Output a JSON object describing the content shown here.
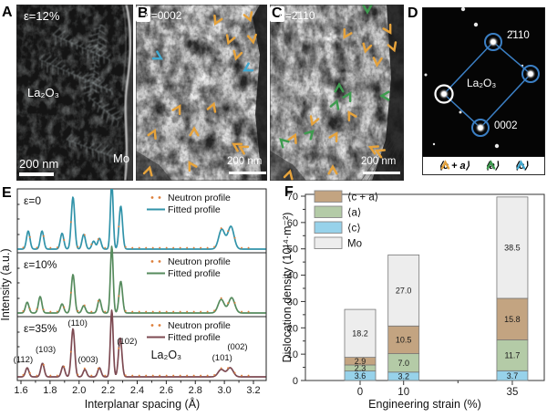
{
  "panel_letters": {
    "A": "A",
    "B": "B",
    "C": "C",
    "D": "D",
    "E": "E",
    "F": "F"
  },
  "panel_a": {
    "strain": "ε=12%",
    "material": "La₂O₃",
    "region": "Mo",
    "scalebar": "200 nm"
  },
  "panel_b": {
    "g_symbol": "g",
    "g_value": "=0002",
    "scalebar": "200 nm"
  },
  "panel_c": {
    "g_symbol": "g",
    "g_value": "=2̄110",
    "scalebar": "200 nm"
  },
  "panel_d": {
    "material": "La₂O₃",
    "spot_top": "2̄110",
    "spot_bottom": "0002"
  },
  "burgers_legend": [
    {
      "label": "⟨c + a⟩",
      "color": "#e6a33c"
    },
    {
      "label": "⟨a⟩",
      "color": "#3e9b4f"
    },
    {
      "label": "⟨c⟩",
      "color": "#41a9d1"
    }
  ],
  "arrows": {
    "b_yellow": [
      [
        89,
        17,
        205
      ],
      [
        124,
        13,
        160
      ],
      [
        103,
        38,
        200
      ],
      [
        128,
        37,
        170
      ],
      [
        111,
        55,
        195
      ],
      [
        46,
        115,
        30
      ],
      [
        84,
        113,
        20
      ],
      [
        19,
        142,
        25
      ],
      [
        64,
        140,
        0
      ],
      [
        111,
        155,
        300
      ],
      [
        118,
        158,
        300
      ],
      [
        14,
        183,
        15
      ],
      [
        61,
        177,
        330
      ]
    ],
    "b_cyan": [
      [
        24,
        57,
        120
      ],
      [
        123,
        70,
        240
      ]
    ],
    "c_yellow": [
      [
        84,
        32,
        210
      ],
      [
        130,
        27,
        150
      ],
      [
        106,
        47,
        195
      ],
      [
        135,
        46,
        160
      ],
      [
        118,
        62,
        185
      ],
      [
        48,
        127,
        200
      ],
      [
        26,
        147,
        25
      ],
      [
        89,
        122,
        330
      ],
      [
        71,
        145,
        30
      ],
      [
        114,
        158,
        295
      ],
      [
        121,
        162,
        295
      ],
      [
        69,
        182,
        0
      ],
      [
        21,
        187,
        15
      ]
    ],
    "c_green": [
      [
        107,
        4,
        180
      ],
      [
        76,
        92,
        0
      ],
      [
        86,
        101,
        30
      ],
      [
        72,
        110,
        20
      ],
      [
        127,
        100,
        270
      ],
      [
        44,
        142,
        45
      ],
      [
        15,
        151,
        315
      ]
    ]
  },
  "diffraction": {
    "spots": [
      [
        24,
        95
      ],
      [
        78,
        38
      ],
      [
        119,
        73
      ],
      [
        64,
        132
      ]
    ],
    "faint_spots": [
      [
        45,
        2,
        2.2
      ],
      [
        59,
        19,
        2.2
      ],
      [
        4,
        74,
        1.5
      ],
      [
        110,
        64,
        1.2
      ],
      [
        42,
        115,
        1.5
      ],
      [
        82,
        152,
        2.2
      ],
      [
        13,
        150,
        1.2
      ]
    ],
    "circle_color": "#3b7fc4"
  },
  "chart_data": [
    {
      "type": "line",
      "panel": "E",
      "xlabel": "Interplanar spacing (Å)",
      "ylabel": "Intensity (a.u.)",
      "xlim": [
        1.6,
        3.2
      ],
      "xticks": [
        1.6,
        1.8,
        2.0,
        2.2,
        2.4,
        2.6,
        2.8,
        3.0,
        3.2
      ],
      "legend": {
        "dot_label": "Neutron profile",
        "line_label": "Fitted profile",
        "dot_color": "#dd7e3a"
      },
      "annotation": {
        "text": "La₂O₃",
        "x": 2.6,
        "dy": 46
      },
      "series": [
        {
          "name": "ε=0",
          "color": "#3193a9",
          "peaks": [
            [
              1.65,
              0.32
            ],
            [
              1.745,
              0.32
            ],
            [
              1.883,
              0.28
            ],
            [
              1.958,
              0.92
            ],
            [
              2.032,
              0.26
            ],
            [
              2.1,
              0.14
            ],
            [
              2.14,
              0.19
            ],
            [
              2.225,
              1.18
            ],
            [
              2.287,
              0.76
            ],
            [
              2.982,
              0.35
            ],
            [
              3.045,
              0.4
            ]
          ]
        },
        {
          "name": "ε=10%",
          "color": "#568b5d",
          "peaks": [
            [
              1.643,
              0.19
            ],
            [
              1.732,
              0.29
            ],
            [
              1.883,
              0.16
            ],
            [
              1.958,
              0.68
            ],
            [
              2.032,
              0.13
            ],
            [
              2.14,
              0.24
            ],
            [
              2.225,
              1.18
            ],
            [
              2.287,
              0.56
            ],
            [
              2.978,
              0.24
            ],
            [
              3.05,
              0.27
            ]
          ]
        },
        {
          "name": "ε=35%",
          "color": "#7d4a52",
          "peaks": [
            [
              1.643,
              0.16
            ],
            [
              1.748,
              0.24
            ],
            [
              1.89,
              0.19
            ],
            [
              1.958,
              0.85
            ],
            [
              2.04,
              0.13
            ],
            [
              2.14,
              0.16
            ],
            [
              2.225,
              1.18
            ],
            [
              2.283,
              0.69
            ],
            [
              2.978,
              0.13
            ],
            [
              3.04,
              0.16
            ]
          ]
        }
      ],
      "peak_labels": [
        [
          "(112)",
          1.615,
          50
        ],
        [
          "(103)",
          1.77,
          39
        ],
        [
          "(110)",
          1.99,
          10
        ],
        [
          "(003)",
          2.062,
          50
        ],
        [
          "(102)",
          2.33,
          30
        ],
        [
          "(101)",
          2.985,
          48
        ],
        [
          "(002)",
          3.09,
          36
        ]
      ]
    },
    {
      "type": "stacked-bar",
      "panel": "F",
      "xlabel": "Engineering  strain (%)",
      "ylabel": "Dislocation  density (10¹⁴·m⁻²)",
      "categories": [
        "0",
        "10",
        "35"
      ],
      "x_values": [
        0,
        10,
        35
      ],
      "minor_xtick": 22.5,
      "ylim": [
        0,
        70
      ],
      "yticks": [
        0,
        10,
        20,
        30,
        40,
        50,
        60,
        70
      ],
      "series": [
        {
          "name": "⟨c⟩",
          "color": "#97d2ea",
          "values": [
            3.6,
            3.2,
            3.7
          ]
        },
        {
          "name": "⟨a⟩",
          "color": "#b4cba7",
          "values": [
            2.3,
            7.0,
            11.7
          ]
        },
        {
          "name": "⟨c + a⟩",
          "color": "#c3a481",
          "values": [
            2.9,
            10.5,
            15.8
          ]
        },
        {
          "name": "Mo",
          "color": "#ededed",
          "values": [
            18.2,
            27.0,
            38.5
          ]
        }
      ],
      "legend": [
        "⟨c + a⟩",
        "⟨a⟩",
        "⟨c⟩",
        "Mo"
      ]
    }
  ]
}
